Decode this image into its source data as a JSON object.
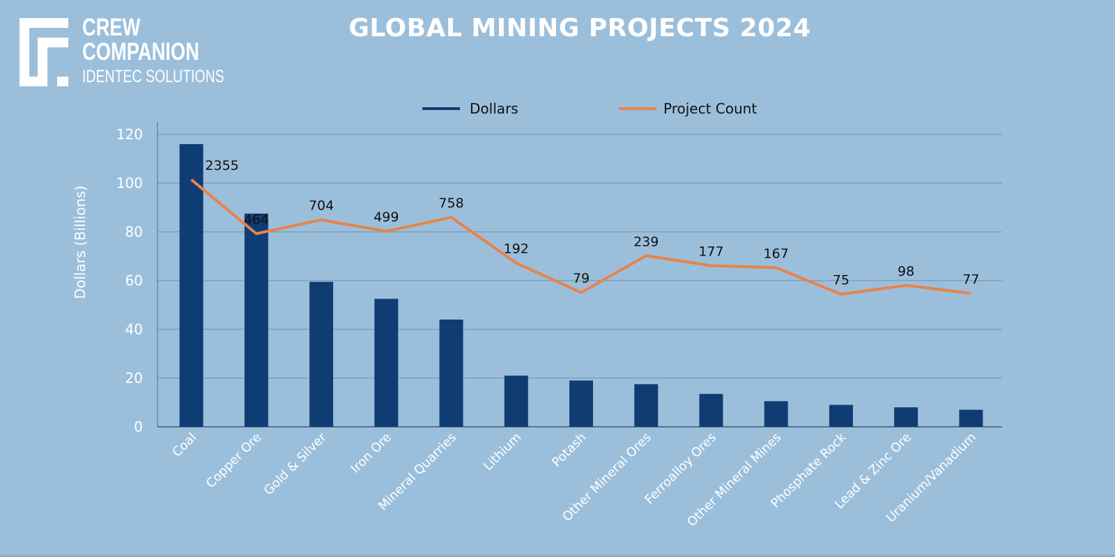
{
  "logo": {
    "line1": "CREW",
    "line2": "COMPANION",
    "line3": "IDENTEC SOLUTIONS"
  },
  "colors": {
    "background": "#9bbfdb",
    "bars": "#0f3d73",
    "line": "#e8834a",
    "grid": "#6f8fab",
    "text": "#111111",
    "axis_text": "#ffffff"
  },
  "chart_data": {
    "type": "bar",
    "title": "GLOBAL MINING PROJECTS 2024",
    "xlabel": "",
    "ylabel": "Dollars (Billions)",
    "ylim": [
      0,
      120
    ],
    "yticks": [
      0,
      20,
      40,
      60,
      80,
      100,
      120
    ],
    "grid": true,
    "legend": "top-center",
    "categories": [
      "Coal",
      "Copper Ore",
      "Gold & Silver",
      "Iron Ore",
      "Mineral Quarries",
      "Lithium",
      "Potash",
      "Other Mineral Ores",
      "Ferroalloy Ores",
      "Other Mineral Mines",
      "Phosphate Rock",
      "Lead & Zinc Ore",
      "Uranium/Vanadium"
    ],
    "series": [
      {
        "name": "Dollars",
        "type": "bar",
        "values": [
          116,
          87.5,
          59.5,
          52.5,
          44,
          21,
          19,
          17.5,
          13.5,
          10.5,
          9,
          8,
          7
        ]
      },
      {
        "name": "Project Count",
        "type": "line",
        "axis": "secondary (hidden)",
        "values": [
          2355,
          464,
          704,
          499,
          758,
          192,
          79,
          239,
          177,
          167,
          75,
          98,
          77
        ],
        "data_labels": [
          "2355",
          "464",
          "704",
          "499",
          "758",
          "192",
          "79",
          "239",
          "177",
          "167",
          "75",
          "98",
          "77"
        ]
      }
    ]
  }
}
